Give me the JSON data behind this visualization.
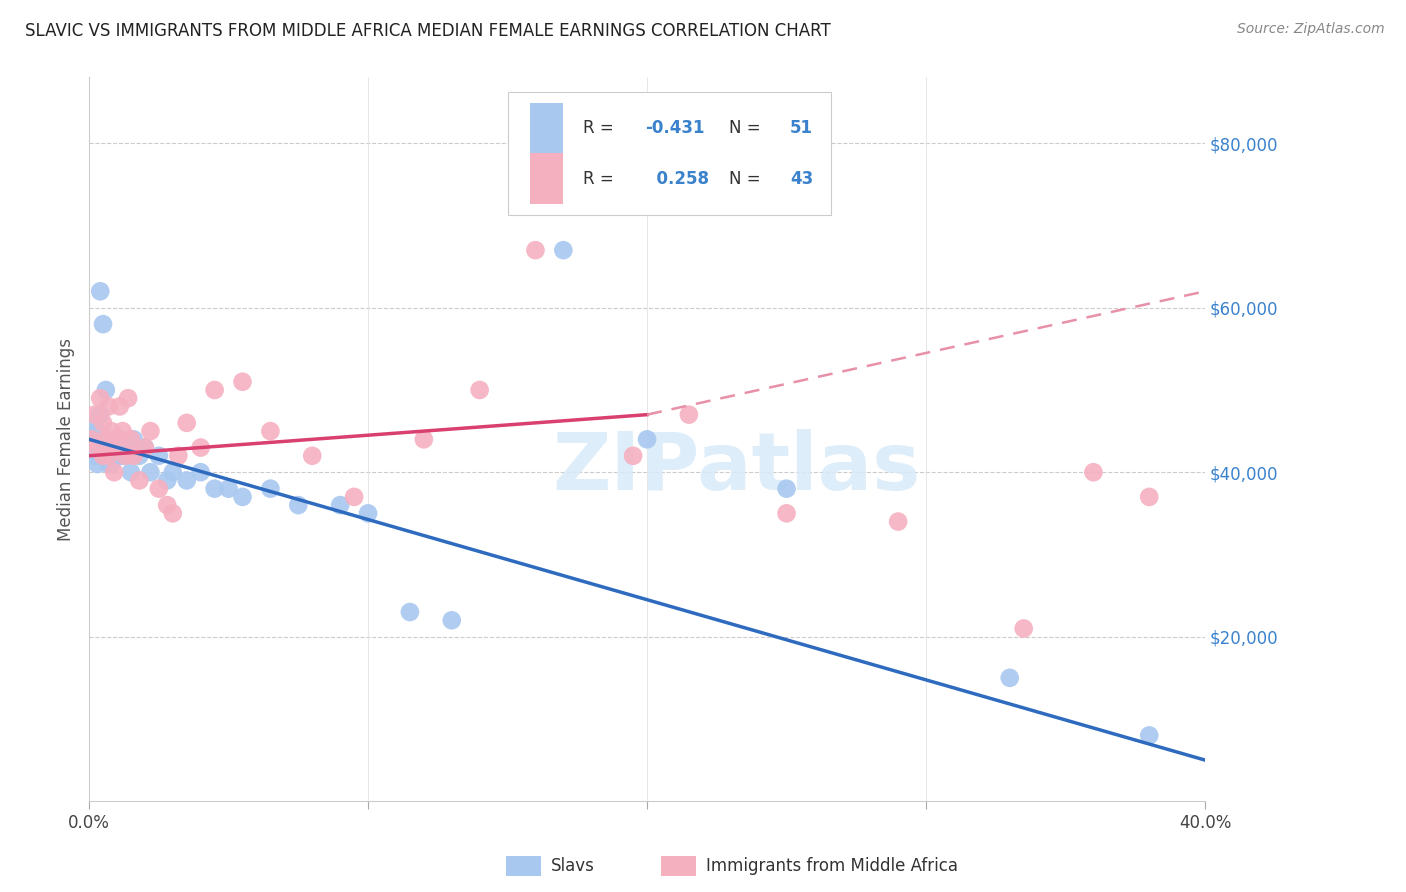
{
  "title": "SLAVIC VS IMMIGRANTS FROM MIDDLE AFRICA MEDIAN FEMALE EARNINGS CORRELATION CHART",
  "source": "Source: ZipAtlas.com",
  "ylabel": "Median Female Earnings",
  "xlim": [
    0.0,
    0.4
  ],
  "ylim": [
    0,
    88000
  ],
  "watermark": "ZIPatlas",
  "legend_R1": "-0.431",
  "legend_N1": "51",
  "legend_R2": "0.258",
  "legend_N2": "43",
  "blue_color": "#A8C8F0",
  "pink_color": "#F5B0C0",
  "blue_line_color": "#2E6BBF",
  "pink_line_color": "#D94070",
  "pink_dash_color": "#E890A8",
  "right_label_color": "#3B82CC",
  "slavs_label": "Slavs",
  "africa_label": "Immigrants from Middle Africa",
  "slavs_x": [
    0.001,
    0.001,
    0.002,
    0.002,
    0.002,
    0.003,
    0.003,
    0.003,
    0.004,
    0.004,
    0.004,
    0.005,
    0.005,
    0.005,
    0.006,
    0.006,
    0.007,
    0.007,
    0.008,
    0.008,
    0.009,
    0.009,
    0.01,
    0.011,
    0.012,
    0.013,
    0.015,
    0.016,
    0.018,
    0.02,
    0.022,
    0.025,
    0.028,
    0.03,
    0.035,
    0.04,
    0.045,
    0.05,
    0.055,
    0.065,
    0.075,
    0.09,
    0.1,
    0.115,
    0.13,
    0.155,
    0.17,
    0.2,
    0.25,
    0.33,
    0.38
  ],
  "slavs_y": [
    43000,
    44000,
    42000,
    44000,
    46000,
    43000,
    45000,
    41000,
    43000,
    47000,
    62000,
    58000,
    42000,
    43000,
    43000,
    50000,
    44000,
    41000,
    43000,
    41000,
    44000,
    42000,
    42000,
    44000,
    42000,
    43000,
    40000,
    44000,
    42000,
    43000,
    40000,
    42000,
    39000,
    40000,
    39000,
    40000,
    38000,
    38000,
    37000,
    38000,
    36000,
    36000,
    35000,
    23000,
    22000,
    74000,
    67000,
    44000,
    38000,
    15000,
    8000
  ],
  "africa_x": [
    0.001,
    0.002,
    0.003,
    0.004,
    0.005,
    0.005,
    0.006,
    0.007,
    0.007,
    0.008,
    0.008,
    0.009,
    0.01,
    0.011,
    0.012,
    0.013,
    0.014,
    0.015,
    0.016,
    0.018,
    0.02,
    0.022,
    0.025,
    0.028,
    0.032,
    0.035,
    0.04,
    0.045,
    0.055,
    0.065,
    0.08,
    0.095,
    0.12,
    0.14,
    0.16,
    0.195,
    0.215,
    0.25,
    0.29,
    0.335,
    0.36,
    0.38,
    0.03
  ],
  "africa_y": [
    44000,
    47000,
    43000,
    49000,
    42000,
    46000,
    44000,
    48000,
    42000,
    45000,
    43000,
    40000,
    44000,
    48000,
    45000,
    42000,
    49000,
    44000,
    42000,
    39000,
    43000,
    45000,
    38000,
    36000,
    42000,
    46000,
    43000,
    50000,
    51000,
    45000,
    42000,
    37000,
    44000,
    50000,
    67000,
    42000,
    47000,
    35000,
    34000,
    21000,
    40000,
    37000,
    35000
  ]
}
